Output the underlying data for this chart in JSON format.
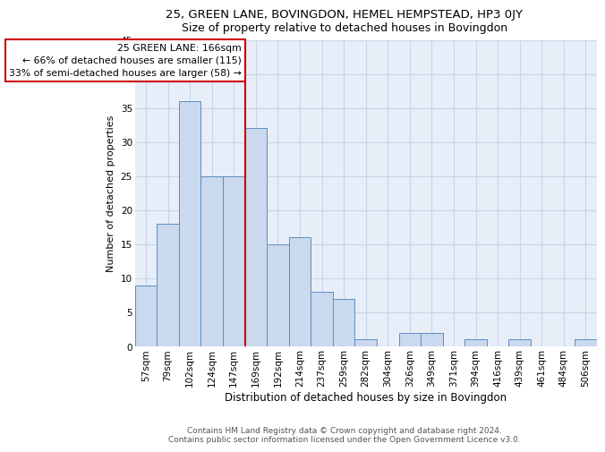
{
  "title1": "25, GREEN LANE, BOVINGDON, HEMEL HEMPSTEAD, HP3 0JY",
  "title2": "Size of property relative to detached houses in Bovingdon",
  "xlabel": "Distribution of detached houses by size in Bovingdon",
  "ylabel": "Number of detached properties",
  "categories": [
    "57sqm",
    "79sqm",
    "102sqm",
    "124sqm",
    "147sqm",
    "169sqm",
    "192sqm",
    "214sqm",
    "237sqm",
    "259sqm",
    "282sqm",
    "304sqm",
    "326sqm",
    "349sqm",
    "371sqm",
    "394sqm",
    "416sqm",
    "439sqm",
    "461sqm",
    "484sqm",
    "506sqm"
  ],
  "values": [
    9,
    18,
    36,
    25,
    25,
    32,
    15,
    16,
    8,
    7,
    1,
    0,
    2,
    2,
    0,
    1,
    0,
    1,
    0,
    0,
    1
  ],
  "bar_color": "#cad9ed",
  "bar_edge_color": "#5b8ec4",
  "vline_index": 5,
  "vline_color": "#cc0000",
  "annotation_text": "25 GREEN LANE: 166sqm\n← 66% of detached houses are smaller (115)\n33% of semi-detached houses are larger (58) →",
  "annotation_box_color": "#ffffff",
  "annotation_box_edge": "#cc0000",
  "ylim": [
    0,
    45
  ],
  "yticks": [
    0,
    5,
    10,
    15,
    20,
    25,
    30,
    35,
    40,
    45
  ],
  "grid_color": "#c8d4e8",
  "bg_color": "#e8eef8",
  "footer1": "Contains HM Land Registry data © Crown copyright and database right 2024.",
  "footer2": "Contains public sector information licensed under the Open Government Licence v3.0.",
  "title1_fontsize": 9.5,
  "title2_fontsize": 9,
  "xlabel_fontsize": 8.5,
  "ylabel_fontsize": 8,
  "tick_fontsize": 7.5,
  "annotation_fontsize": 7.8,
  "footer_fontsize": 6.5
}
